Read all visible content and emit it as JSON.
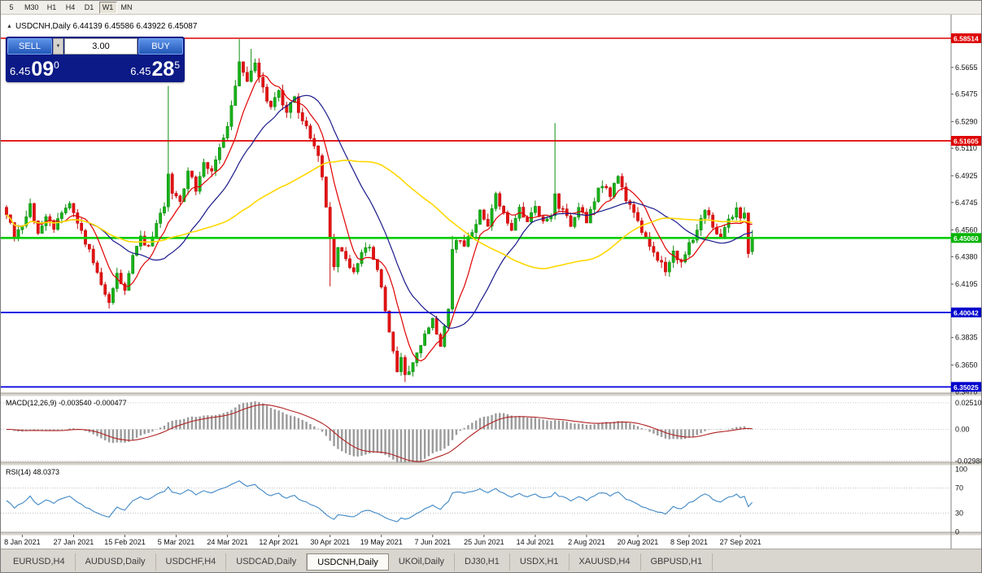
{
  "toolbar": {
    "timeframes": [
      {
        "label": "5",
        "active": false
      },
      {
        "label": "M30",
        "active": false
      },
      {
        "label": "H1",
        "active": false
      },
      {
        "label": "H4",
        "active": false
      },
      {
        "label": "D1",
        "active": false
      },
      {
        "label": "W1",
        "active": true
      },
      {
        "label": "MN",
        "active": false
      }
    ]
  },
  "chart": {
    "collapse_icon": "▲",
    "symbol": "USDCNH,Daily",
    "title": "USDCNH,Daily  6.44139 6.45586 6.43922 6.45087",
    "open": "6.44139",
    "high": "6.45586",
    "low": "6.43922",
    "close": "6.45087"
  },
  "trade_panel": {
    "sell_label": "SELL",
    "buy_label": "BUY",
    "volume": "3.00",
    "spinner_icon": "▼",
    "sell_price": {
      "base": "6.45",
      "pips": "09",
      "pip_fraction": "0"
    },
    "buy_price": {
      "base": "6.45",
      "pips": "28",
      "pip_fraction": "5"
    }
  },
  "price_axis": {
    "ticks": [
      "6.5655",
      "6.5475",
      "6.5290",
      "6.5110",
      "6.4925",
      "6.4745",
      "6.4560",
      "6.4380",
      "6.4195",
      "6.4015",
      "6.3835",
      "6.3650",
      "6.3470"
    ]
  },
  "levels": [
    {
      "price": 6.58514,
      "label": "6.58514",
      "color": "#e00000",
      "width": 1.4,
      "label_bg": "#dd0000"
    },
    {
      "price": 6.51605,
      "label": "6.51605",
      "color": "#e00000",
      "width": 1.8,
      "label_bg": "#dd0000"
    },
    {
      "price": 6.4506,
      "label": "6.45060",
      "color": "#00cd00",
      "width": 2.6,
      "label_bg": "#00b400"
    },
    {
      "price": 6.40042,
      "label": "6.40042",
      "color": "#0000e0",
      "width": 1.8,
      "label_bg": "#0000cd"
    },
    {
      "price": 6.35025,
      "label": "6.35025",
      "color": "#0000e0",
      "width": 1.8,
      "label_bg": "#0000cd"
    }
  ],
  "indicators": {
    "macd": {
      "label": "MACD(12,26,9) -0.003540 -0.000477",
      "axis": [
        "0.025108",
        "0.00",
        "-0.02988"
      ],
      "histogram_color": "#9b9b9b",
      "signal_color": "#b22222"
    },
    "rsi": {
      "label": "RSI(14) 48.0373",
      "axis": [
        "100",
        "70",
        "30",
        "0"
      ],
      "levels": [
        70,
        30
      ],
      "line_color": "#3f87c6"
    }
  },
  "date_axis": [
    "8 Jan 2021",
    "27 Jan 2021",
    "15 Feb 2021",
    "5 Mar 2021",
    "24 Mar 2021",
    "12 Apr 2021",
    "30 Apr 2021",
    "19 May 2021",
    "7 Jun 2021",
    "25 Jun 2021",
    "14 Jul 2021",
    "2 Aug 2021",
    "20 Aug 2021",
    "8 Sep 2021",
    "27 Sep 2021"
  ],
  "chart_data": {
    "type": "candlestick",
    "symbol": "USDCNH",
    "period": "Daily",
    "candle_count": 190,
    "up_color": "#19b219",
    "down_color": "#e31212",
    "close_waypoints": [
      [
        0,
        6.468
      ],
      [
        2,
        6.452
      ],
      [
        4,
        6.46
      ],
      [
        6,
        6.473
      ],
      [
        8,
        6.455
      ],
      [
        10,
        6.465
      ],
      [
        12,
        6.455
      ],
      [
        14,
        6.468
      ],
      [
        16,
        6.476
      ],
      [
        18,
        6.462
      ],
      [
        20,
        6.448
      ],
      [
        22,
        6.434
      ],
      [
        24,
        6.42
      ],
      [
        26,
        6.407
      ],
      [
        28,
        6.428
      ],
      [
        30,
        6.416
      ],
      [
        32,
        6.438
      ],
      [
        34,
        6.452
      ],
      [
        36,
        6.444
      ],
      [
        38,
        6.458
      ],
      [
        40,
        6.472
      ],
      [
        41,
        6.492
      ],
      [
        42,
        6.482
      ],
      [
        44,
        6.474
      ],
      [
        46,
        6.495
      ],
      [
        48,
        6.484
      ],
      [
        50,
        6.502
      ],
      [
        52,
        6.495
      ],
      [
        54,
        6.51
      ],
      [
        56,
        6.528
      ],
      [
        58,
        6.552
      ],
      [
        59,
        6.568
      ],
      [
        61,
        6.556
      ],
      [
        63,
        6.566
      ],
      [
        65,
        6.55
      ],
      [
        67,
        6.54
      ],
      [
        69,
        6.548
      ],
      [
        71,
        6.536
      ],
      [
        73,
        6.544
      ],
      [
        75,
        6.53
      ],
      [
        77,
        6.52
      ],
      [
        79,
        6.508
      ],
      [
        80,
        6.492
      ],
      [
        81,
        6.47
      ],
      [
        82,
        6.448
      ],
      [
        83,
        6.432
      ],
      [
        84,
        6.444
      ],
      [
        86,
        6.436
      ],
      [
        88,
        6.428
      ],
      [
        90,
        6.44
      ],
      [
        92,
        6.446
      ],
      [
        94,
        6.43
      ],
      [
        95,
        6.416
      ],
      [
        96,
        6.402
      ],
      [
        97,
        6.388
      ],
      [
        98,
        6.374
      ],
      [
        99,
        6.36
      ],
      [
        100,
        6.368
      ],
      [
        101,
        6.357
      ],
      [
        103,
        6.366
      ],
      [
        105,
        6.38
      ],
      [
        107,
        6.39
      ],
      [
        108,
        6.398
      ],
      [
        109,
        6.388
      ],
      [
        110,
        6.38
      ],
      [
        111,
        6.392
      ],
      [
        112,
        6.404
      ],
      [
        113,
        6.442
      ],
      [
        114,
        6.45
      ],
      [
        116,
        6.444
      ],
      [
        118,
        6.456
      ],
      [
        120,
        6.468
      ],
      [
        122,
        6.458
      ],
      [
        124,
        6.478
      ],
      [
        126,
        6.468
      ],
      [
        128,
        6.458
      ],
      [
        130,
        6.47
      ],
      [
        132,
        6.463
      ],
      [
        134,
        6.47
      ],
      [
        136,
        6.461
      ],
      [
        138,
        6.468
      ],
      [
        139,
        6.478
      ],
      [
        141,
        6.468
      ],
      [
        143,
        6.459
      ],
      [
        145,
        6.47
      ],
      [
        147,
        6.463
      ],
      [
        149,
        6.477
      ],
      [
        151,
        6.487
      ],
      [
        153,
        6.48
      ],
      [
        155,
        6.491
      ],
      [
        157,
        6.478
      ],
      [
        159,
        6.468
      ],
      [
        161,
        6.455
      ],
      [
        163,
        6.446
      ],
      [
        165,
        6.438
      ],
      [
        167,
        6.43
      ],
      [
        169,
        6.441
      ],
      [
        171,
        6.433
      ],
      [
        173,
        6.446
      ],
      [
        175,
        6.457
      ],
      [
        177,
        6.471
      ],
      [
        179,
        6.46
      ],
      [
        181,
        6.45
      ],
      [
        183,
        6.461
      ],
      [
        185,
        6.469
      ],
      [
        186,
        6.464
      ],
      [
        187,
        6.468
      ],
      [
        188,
        6.438
      ],
      [
        189,
        6.451
      ]
    ],
    "spike_highs": {
      "41": 6.553,
      "59": 6.5845,
      "62": 6.578,
      "113": 6.452,
      "139": 6.528
    },
    "spike_lows": {
      "26": 6.403,
      "82": 6.418,
      "101": 6.3535
    },
    "last_candle": {
      "open": 6.44139,
      "high": 6.45586,
      "low": 6.43922,
      "close": 6.45087
    },
    "ma": [
      {
        "period": 8,
        "color": "#e00000"
      },
      {
        "period": 21,
        "color": "#1a1a8c"
      },
      {
        "period": 55,
        "color": "#ffd700"
      }
    ],
    "macd_params": "12,26,9",
    "rsi_period": 14
  },
  "tabs": {
    "items": [
      {
        "label": "EURUSD,H4",
        "active": false
      },
      {
        "label": "AUDUSD,Daily",
        "active": false
      },
      {
        "label": "USDCHF,H4",
        "active": false
      },
      {
        "label": "USDCAD,Daily",
        "active": false
      },
      {
        "label": "USDCNH,Daily",
        "active": true
      },
      {
        "label": "UKOil,Daily",
        "active": false
      },
      {
        "label": "DJ30,H1",
        "active": false
      },
      {
        "label": "USDX,H1",
        "active": false
      },
      {
        "label": "XAUUSD,H4",
        "active": false
      },
      {
        "label": "GBPUSD,H1",
        "active": false
      }
    ],
    "scroll_left_icon": "◄",
    "scroll_right_icon": "►"
  }
}
